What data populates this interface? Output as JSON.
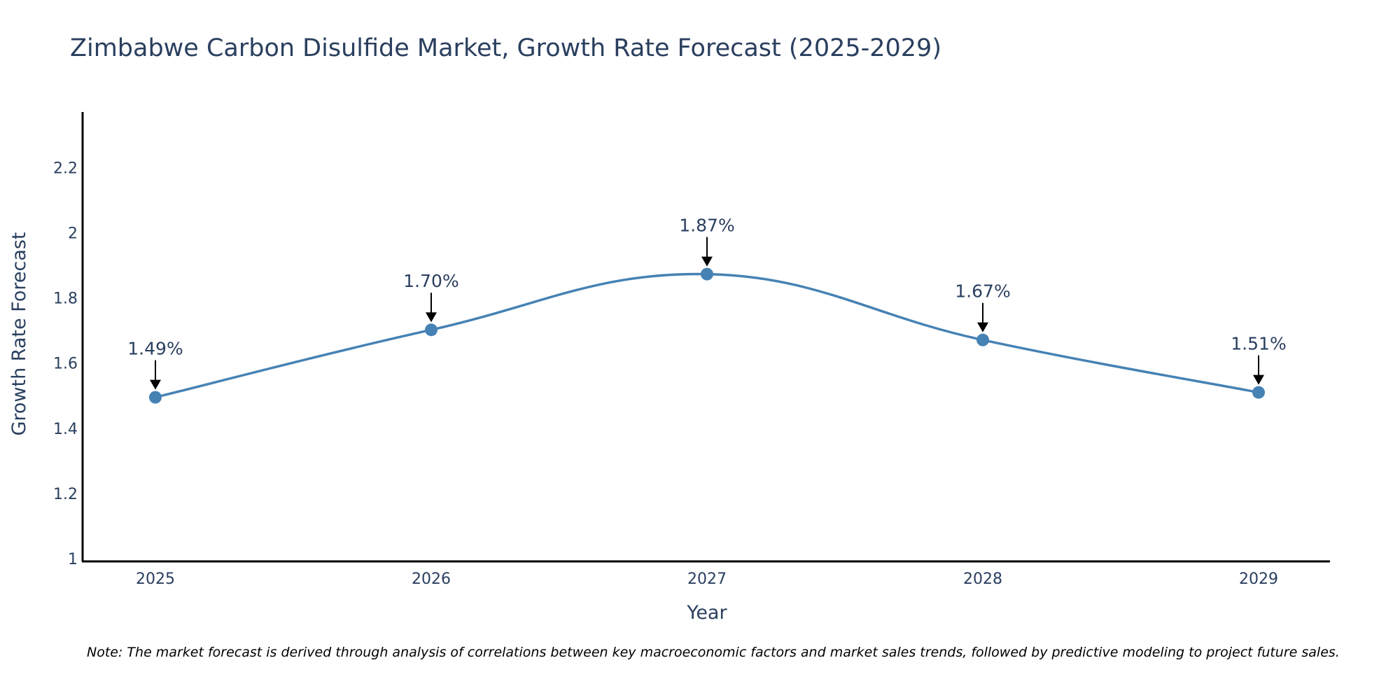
{
  "chart_data": {
    "type": "line",
    "title": "Zimbabwe Carbon Disulfide Market, Growth Rate Forecast (2025-2029)",
    "xlabel": "Year",
    "ylabel": "Growth Rate Forecast",
    "categories": [
      "2025",
      "2026",
      "2027",
      "2028",
      "2029"
    ],
    "values": [
      1.495,
      1.702,
      1.873,
      1.671,
      1.51
    ],
    "data_labels": [
      "1.49%",
      "1.70%",
      "1.87%",
      "1.67%",
      "1.51%"
    ],
    "ylim": [
      1,
      2.37
    ],
    "yticks": [
      1,
      1.2,
      1.4,
      1.6,
      1.8,
      2,
      2.2
    ],
    "ytick_labels": [
      "1",
      "1.2",
      "1.4",
      "1.6",
      "1.8",
      "2",
      "2.2"
    ],
    "grid": false,
    "line_shape": "spline"
  },
  "note": "Note: The market forecast is derived through analysis of correlations between key macroeconomic factors and market sales trends, followed by predictive modeling to project future sales.",
  "colors": {
    "line": "#4682b4",
    "marker": "#4682b4",
    "arrow": "#000000",
    "axis": "#000000",
    "text": "#2a3f5f"
  }
}
